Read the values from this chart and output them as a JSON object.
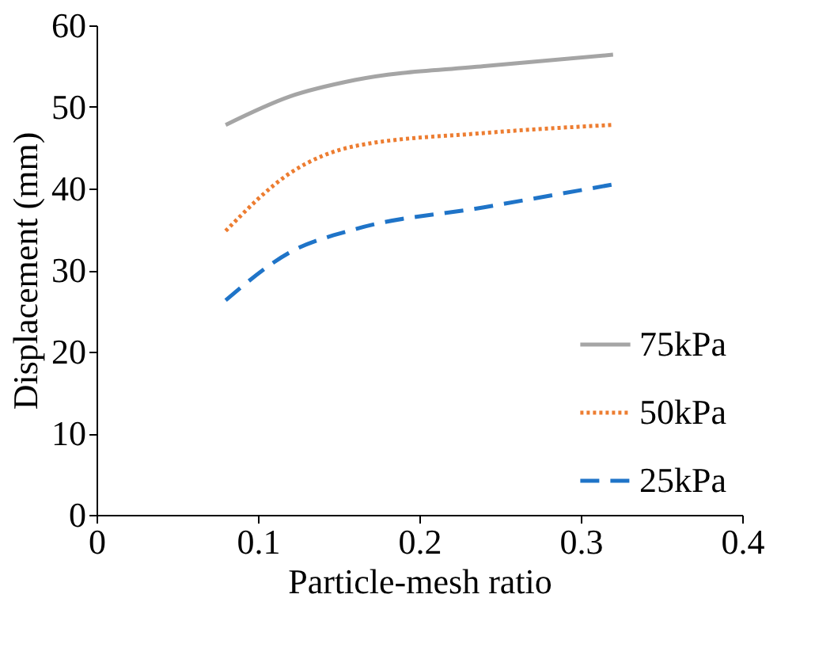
{
  "chart_data": {
    "type": "line",
    "xlabel": "Particle-mesh ratio",
    "ylabel": "Displacement (mm)",
    "x": [
      0.08,
      0.12,
      0.16,
      0.24,
      0.32
    ],
    "series": [
      {
        "name": "75kPa",
        "color": "#a5a5a5",
        "line_style": "solid",
        "values": [
          47.8,
          51.3,
          53.3,
          55.0,
          56.4
        ]
      },
      {
        "name": "50kPa",
        "color": "#ed7d31",
        "line_style": "dotted",
        "values": [
          34.8,
          41.9,
          45.2,
          46.8,
          47.8
        ]
      },
      {
        "name": "25kPa",
        "color": "#1f74c8",
        "line_style": "dashed",
        "values": [
          26.3,
          32.2,
          35.0,
          37.7,
          40.5
        ]
      }
    ],
    "xlim": [
      0,
      0.4
    ],
    "xticks": [
      0,
      0.1,
      0.2,
      0.3,
      0.4
    ],
    "ylim": [
      0,
      60
    ],
    "yticks": [
      0,
      10,
      20,
      30,
      40,
      50,
      60
    ],
    "grid": false,
    "legend": "bottom right",
    "marker": "none"
  }
}
